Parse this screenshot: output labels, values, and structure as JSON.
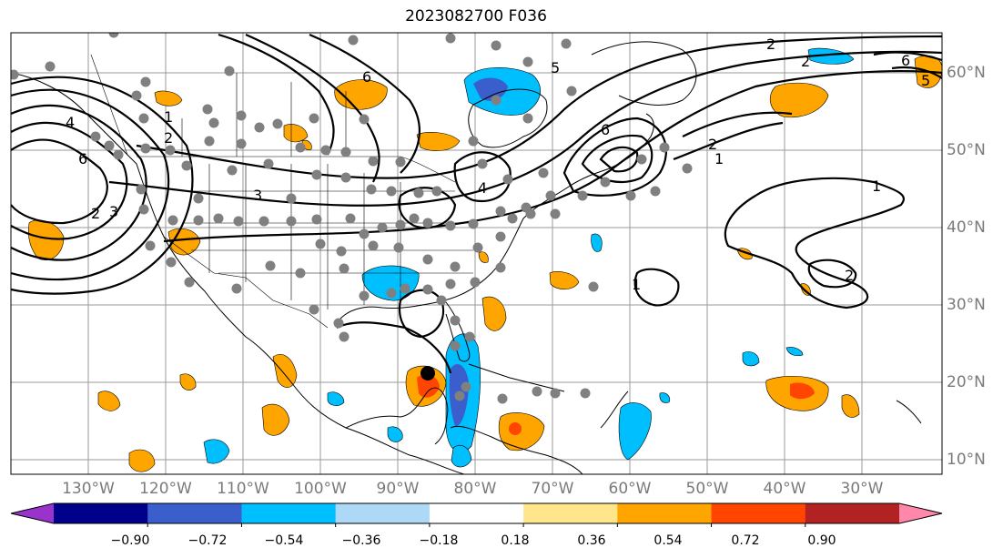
{
  "title": "2023082700 F036",
  "lat_labels": [
    "10°N",
    "20°N",
    "30°N",
    "40°N",
    "50°N",
    "60°N"
  ],
  "lon_labels": [
    "130°W",
    "120°W",
    "110°W",
    "100°W",
    "90°W",
    "80°W",
    "70°W",
    "60°W",
    "50°W",
    "40°W",
    "30°W"
  ],
  "contour_labels": [
    "2",
    "4",
    "6",
    "2",
    "1",
    "3",
    "6",
    "4",
    "5",
    "2",
    "6",
    "2",
    "1",
    "2",
    "6",
    "3",
    "5",
    "1",
    "2",
    "1"
  ],
  "colorbar": {
    "ticks": [
      "−0.90",
      "−0.72",
      "−0.54",
      "−0.36",
      "−0.18",
      "0.18",
      "0.36",
      "0.54",
      "0.72",
      "0.90"
    ],
    "colors": [
      "#9933cc",
      "#00008b",
      "#3a5fcd",
      "#00bfff",
      "#add8f6",
      "#ffffff",
      "#ffe68a",
      "#ffa500",
      "#ff4500",
      "#b22222",
      "#ff88aa"
    ]
  }
}
